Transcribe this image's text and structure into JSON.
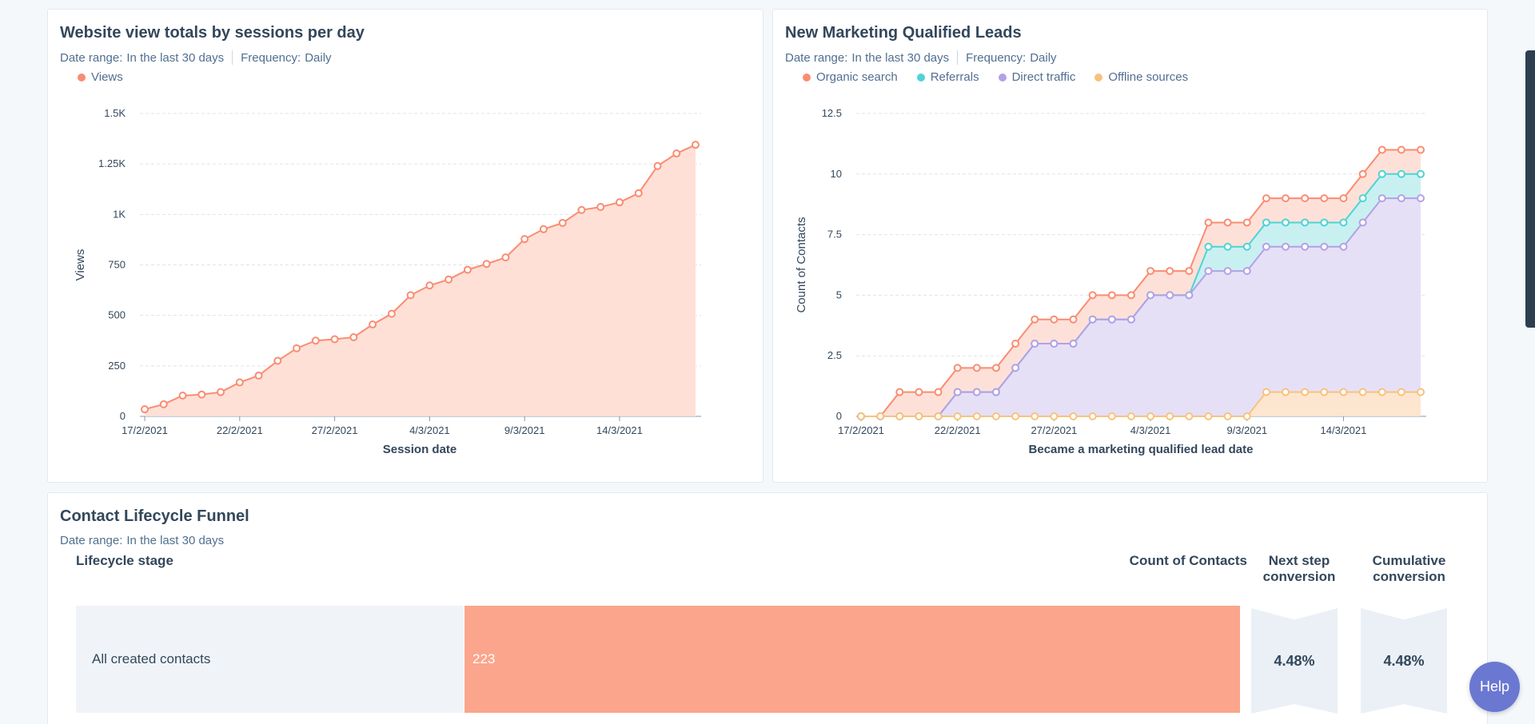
{
  "views_card": {
    "title": "Website view totals by sessions per day",
    "date_range_label": "Date range:",
    "date_range_value": "In the last 30 days",
    "frequency_label": "Frequency:",
    "frequency_value": "Daily",
    "legend": [
      {
        "label": "Views",
        "color": "#fa8c72"
      }
    ]
  },
  "mql_card": {
    "title": "New Marketing Qualified Leads",
    "date_range_label": "Date range:",
    "date_range_value": "In the last 30 days",
    "frequency_label": "Frequency:",
    "frequency_value": "Daily",
    "legend": [
      {
        "label": "Organic search",
        "color": "#fa8c72"
      },
      {
        "label": "Referrals",
        "color": "#4fd3d6"
      },
      {
        "label": "Direct traffic",
        "color": "#b4a0e6"
      },
      {
        "label": "Offline sources",
        "color": "#f8c27d"
      }
    ]
  },
  "chart_data": [
    {
      "type": "area",
      "title": "Website view totals by sessions per day",
      "xlabel": "Session date",
      "ylabel": "Views",
      "ylim": [
        0,
        1500
      ],
      "yticks": [
        0,
        250,
        500,
        750,
        1000,
        1250,
        1500
      ],
      "ytick_labels": [
        "0",
        "250",
        "500",
        "750",
        "1K",
        "1.25K",
        "1.5K"
      ],
      "x_tick_labels": [
        "17/2/2021",
        "22/2/2021",
        "27/2/2021",
        "4/3/2021",
        "9/3/2021",
        "14/3/2021"
      ],
      "x_tick_index": [
        0,
        5,
        10,
        15,
        20,
        25
      ],
      "n_points": 30,
      "series": [
        {
          "name": "Views",
          "color": "#fa8c72",
          "fill": "#fee0d7",
          "values": [
            35,
            60,
            103,
            108,
            120,
            168,
            202,
            275,
            337,
            375,
            382,
            392,
            455,
            508,
            600,
            648,
            678,
            726,
            755,
            787,
            878,
            927,
            958,
            1022,
            1037,
            1060,
            1105,
            1240,
            1302,
            1345
          ]
        }
      ]
    },
    {
      "type": "area",
      "title": "New Marketing Qualified Leads",
      "xlabel": "Became a marketing qualified lead date",
      "ylabel": "Count of Contacts",
      "ylim": [
        0,
        12.5
      ],
      "yticks": [
        0,
        2.5,
        5,
        7.5,
        10,
        12.5
      ],
      "ytick_labels": [
        "0",
        "2.5",
        "5",
        "7.5",
        "10",
        "12.5"
      ],
      "x_tick_labels": [
        "17/2/2021",
        "22/2/2021",
        "27/2/2021",
        "4/3/2021",
        "9/3/2021",
        "14/3/2021"
      ],
      "x_tick_index": [
        0,
        5,
        10,
        15,
        20,
        25
      ],
      "n_points": 30,
      "stacked_cumulative": true,
      "series": [
        {
          "name": "Organic search",
          "color": "#fa8c72",
          "fill": "#fde1d8",
          "values": [
            0,
            0,
            1,
            1,
            1,
            2,
            2,
            2,
            3,
            4,
            4,
            4,
            5,
            5,
            5,
            6,
            6,
            6,
            8,
            8,
            8,
            9,
            9,
            9,
            9,
            9,
            10,
            11,
            11,
            11
          ]
        },
        {
          "name": "Referrals",
          "color": "#4fd3d6",
          "fill": "#c9f0f1",
          "values": [
            0,
            0,
            0,
            0,
            0,
            1,
            1,
            1,
            2,
            3,
            3,
            3,
            4,
            4,
            4,
            5,
            5,
            5,
            7,
            7,
            7,
            8,
            8,
            8,
            8,
            8,
            9,
            10,
            10,
            10
          ]
        },
        {
          "name": "Direct traffic",
          "color": "#b4a0e6",
          "fill": "#e6e0f7",
          "values": [
            0,
            0,
            0,
            0,
            0,
            1,
            1,
            1,
            2,
            3,
            3,
            3,
            4,
            4,
            4,
            5,
            5,
            5,
            6,
            6,
            6,
            7,
            7,
            7,
            7,
            7,
            8,
            9,
            9,
            9
          ]
        },
        {
          "name": "Offline sources",
          "color": "#f8c27d",
          "fill": "#fde6cf",
          "values": [
            0,
            0,
            0,
            0,
            0,
            0,
            0,
            0,
            0,
            0,
            0,
            0,
            0,
            0,
            0,
            0,
            0,
            0,
            0,
            0,
            0,
            1,
            1,
            1,
            1,
            1,
            1,
            1,
            1,
            1
          ]
        }
      ]
    }
  ],
  "funnel_card": {
    "title": "Contact Lifecycle Funnel",
    "date_range_label": "Date range:",
    "date_range_value": "In the last 30 days",
    "col_stage": "Lifecycle stage",
    "col_count": "Count of Contacts",
    "col_next": "Next step conversion",
    "col_cumulative": "Cumulative conversion",
    "rows": [
      {
        "stage": "All created contacts",
        "count": "223",
        "next": "4.48%",
        "cumulative": "4.48%"
      }
    ]
  },
  "help_button": "Help"
}
